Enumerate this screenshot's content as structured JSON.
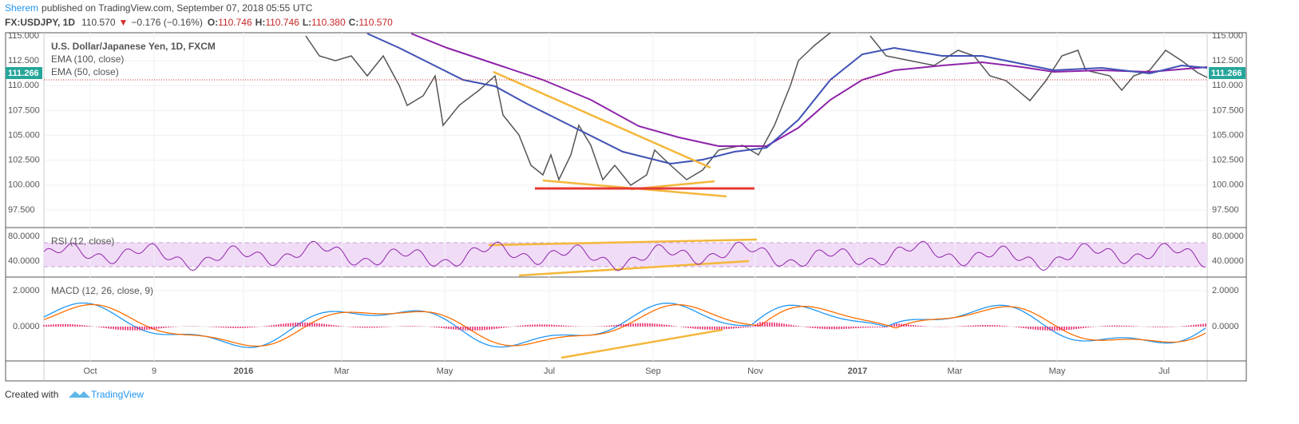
{
  "header": {
    "author": "Sherem",
    "published": "published on TradingView.com, September 07, 2018 05:55 UTC",
    "symbol": "FX:USDJPY, 1D",
    "last": "110.570",
    "change": "−0.176 (−0.16%)",
    "o_label": "O:",
    "o": "110.746",
    "h_label": "H:",
    "h": "110.746",
    "l_label": "L:",
    "l": "110.380",
    "c_label": "C:",
    "c": "110.570"
  },
  "price_pane": {
    "title": "U.S. Dollar/Japanese Yen, 1D, FXCM",
    "indicators": [
      "EMA (100, close)",
      "EMA (50, close)"
    ],
    "axis_labels": [
      "115.000",
      "112.500",
      "110.000",
      "107.500",
      "105.000",
      "102.500",
      "100.000",
      "97.500"
    ],
    "price_marker": "111.266"
  },
  "rsi_pane": {
    "title": "RSI (12, close)",
    "axis_labels": [
      "80.0000",
      "40.0000"
    ]
  },
  "macd_pane": {
    "title": "MACD (12, 26, close, 9)",
    "axis_labels": [
      "2.0000",
      "0.0000"
    ]
  },
  "time_axis": [
    "Oct",
    "9",
    "2016",
    "Mar",
    "May",
    "Jul",
    "Sep",
    "Nov",
    "2017",
    "Mar",
    "May",
    "Jul"
  ],
  "footer": {
    "text": "Created with",
    "brand": "TradingView"
  }
}
